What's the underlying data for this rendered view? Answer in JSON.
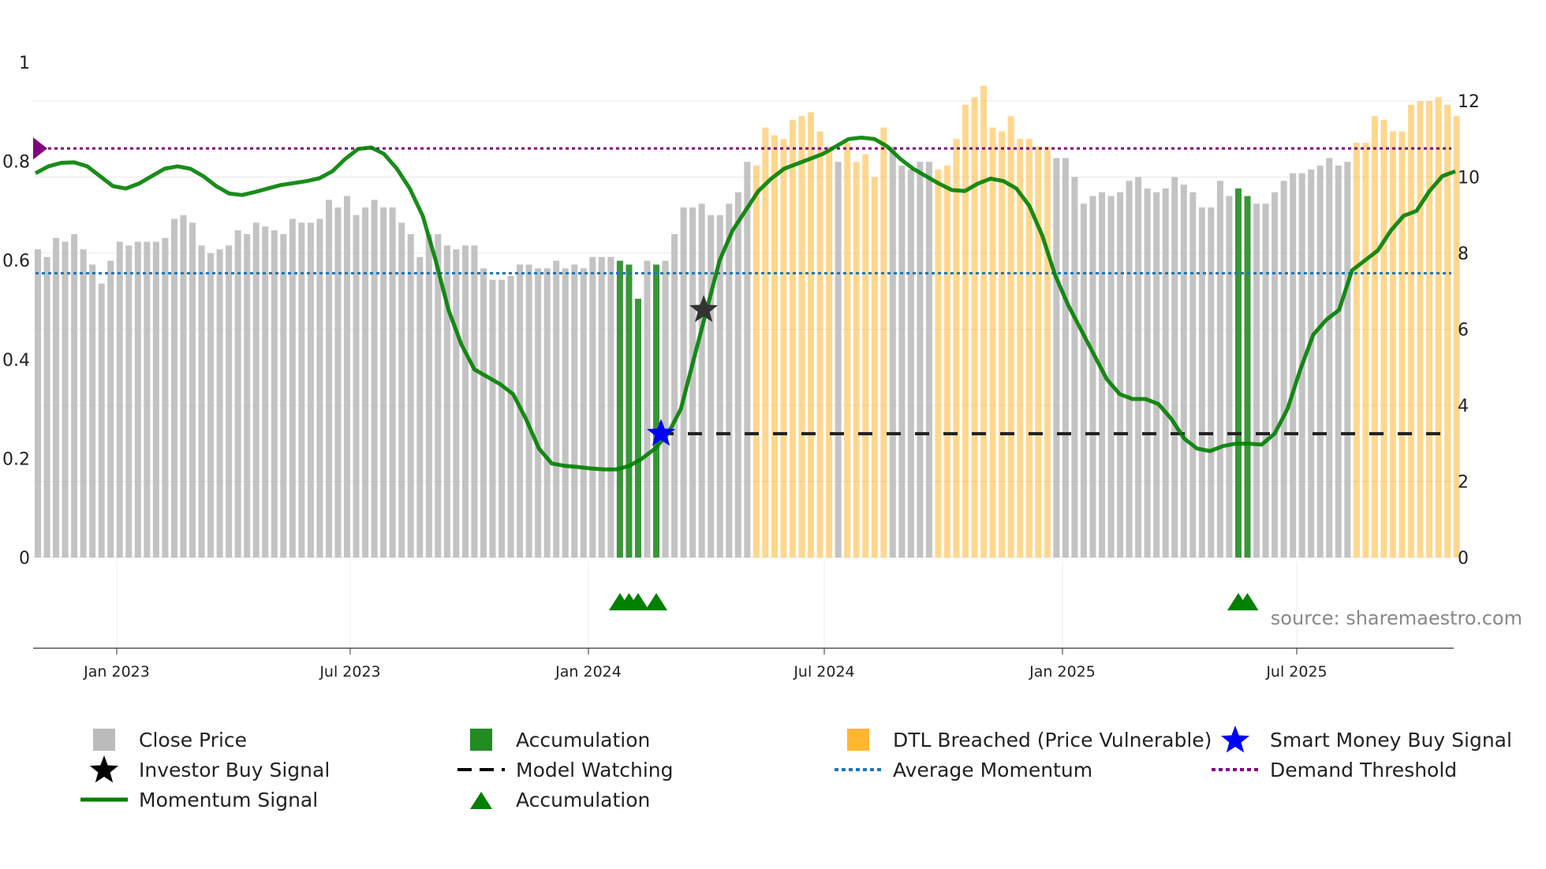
{
  "chart_data": {
    "type": "bar",
    "source": "source: sharemaestro.com",
    "x_ticks": [
      "Jan 2023",
      "Jul 2023",
      "Jan 2024",
      "Jul 2024",
      "Jan 2025",
      "Jul 2025"
    ],
    "y_left": {
      "range": [
        0,
        1
      ],
      "ticks": [
        "0",
        "0.2",
        "0.4",
        "0.6",
        "0.8",
        "1"
      ]
    },
    "y_right": {
      "range": [
        0,
        12
      ],
      "ticks": [
        "0",
        "2",
        "4",
        "6",
        "8",
        "10",
        "12"
      ]
    },
    "close_price": [
      8.1,
      7.9,
      8.4,
      8.3,
      8.5,
      8.1,
      7.7,
      7.2,
      7.8,
      8.3,
      8.2,
      8.3,
      8.3,
      8.3,
      8.4,
      8.9,
      9.0,
      8.8,
      8.2,
      8.0,
      8.1,
      8.2,
      8.6,
      8.5,
      8.8,
      8.7,
      8.6,
      8.5,
      8.9,
      8.8,
      8.8,
      8.9,
      9.4,
      9.2,
      9.5,
      9.0,
      9.2,
      9.4,
      9.2,
      9.2,
      8.8,
      8.5,
      7.9,
      8.5,
      8.5,
      8.2,
      8.1,
      8.2,
      8.2,
      7.6,
      7.3,
      7.3,
      7.4,
      7.7,
      7.7,
      7.6,
      7.6,
      7.8,
      7.6,
      7.7,
      7.6,
      7.9,
      7.9,
      7.9,
      7.8,
      7.7,
      6.8,
      7.8,
      7.7,
      7.8,
      8.5,
      9.2,
      9.2,
      9.3,
      9.0,
      9.0,
      9.3,
      9.6,
      10.4,
      10.3,
      11.3,
      11.1,
      11.0,
      11.5,
      11.6,
      11.7,
      11.2,
      10.8,
      10.4,
      10.9,
      10.4,
      10.6,
      10.0,
      11.3,
      10.8,
      10.3,
      10.2,
      10.4,
      10.4,
      10.2,
      10.3,
      11.0,
      11.9,
      12.1,
      12.4,
      11.3,
      11.2,
      11.6,
      11.0,
      11.0,
      10.8,
      10.8,
      10.5,
      10.5,
      10.0,
      9.3,
      9.5,
      9.6,
      9.5,
      9.6,
      9.9,
      10.0,
      9.7,
      9.6,
      9.7,
      10.0,
      9.8,
      9.6,
      9.2,
      9.2,
      9.9,
      9.5,
      9.7,
      9.5,
      9.3,
      9.3,
      9.6,
      9.9,
      10.1,
      10.1,
      10.2,
      10.3,
      10.5,
      10.3,
      10.4,
      10.9,
      10.9,
      11.6,
      11.5,
      11.2,
      11.2,
      11.9,
      12.0,
      12.0,
      12.1,
      11.9,
      11.6
    ],
    "accumulation_bars": [
      64,
      65,
      66,
      68,
      132,
      133
    ],
    "dtl_breached_bars": [
      79,
      80,
      81,
      82,
      83,
      84,
      85,
      86,
      87,
      89,
      90,
      91,
      92,
      93,
      99,
      100,
      101,
      102,
      103,
      104,
      105,
      106,
      107,
      108,
      109,
      110,
      111,
      145,
      146,
      147,
      148,
      149,
      150,
      151,
      152,
      153,
      154,
      155,
      156
    ],
    "momentum_signal": [
      0.776,
      0.79,
      0.797,
      0.798,
      0.79,
      0.77,
      0.75,
      0.745,
      0.755,
      0.77,
      0.785,
      0.79,
      0.785,
      0.77,
      0.75,
      0.735,
      0.732,
      0.738,
      0.745,
      0.752,
      0.756,
      0.76,
      0.766,
      0.78,
      0.805,
      0.825,
      0.828,
      0.815,
      0.785,
      0.745,
      0.69,
      0.6,
      0.5,
      0.43,
      0.38,
      0.365,
      0.35,
      0.33,
      0.28,
      0.22,
      0.19,
      0.185,
      0.183,
      0.18,
      0.178,
      0.178,
      0.185,
      0.2,
      0.22,
      0.25,
      0.3,
      0.4,
      0.5,
      0.6,
      0.66,
      0.7,
      0.74,
      0.765,
      0.785,
      0.795,
      0.805,
      0.815,
      0.83,
      0.845,
      0.848,
      0.845,
      0.83,
      0.805,
      0.785,
      0.77,
      0.755,
      0.742,
      0.74,
      0.755,
      0.765,
      0.76,
      0.745,
      0.71,
      0.65,
      0.57,
      0.51,
      0.46,
      0.41,
      0.36,
      0.33,
      0.32,
      0.32,
      0.31,
      0.28,
      0.24,
      0.22,
      0.215,
      0.225,
      0.23,
      0.23,
      0.228,
      0.25,
      0.3,
      0.38,
      0.45,
      0.48,
      0.5,
      0.58,
      0.6,
      0.62,
      0.66,
      0.69,
      0.7,
      0.74,
      0.77,
      0.78
    ],
    "average_momentum": 0.574,
    "demand_threshold": 0.826,
    "model_watching_level": 0.25,
    "smart_money_buy_signal": {
      "bar": 68,
      "value": 0.25
    },
    "investor_buy_signal": {
      "bar": 72,
      "value": 0.5
    },
    "accumulation_markers": [
      64,
      65,
      66,
      68,
      132,
      133
    ],
    "legend": [
      {
        "label": "Close Price",
        "symbol": "square",
        "color": "#bbbbbb"
      },
      {
        "label": "Accumulation",
        "symbol": "square",
        "color": "#228b22"
      },
      {
        "label": "DTL Breached (Price Vulnerable)",
        "symbol": "square",
        "color": "#ffb732"
      },
      {
        "label": "Smart Money Buy Signal",
        "symbol": "star",
        "color": "#0000ff"
      },
      {
        "label": "Investor Buy Signal",
        "symbol": "star",
        "color": "#000000"
      },
      {
        "label": "Model Watching",
        "symbol": "dash",
        "color": "#000000"
      },
      {
        "label": "Average Momentum",
        "symbol": "dot",
        "color": "#1f77b4"
      },
      {
        "label": "Demand Threshold",
        "symbol": "dot",
        "color": "#800080"
      },
      {
        "label": "Momentum Signal",
        "symbol": "line",
        "color": "#008000"
      },
      {
        "label": "Accumulation",
        "symbol": "triangle",
        "color": "#008000"
      }
    ]
  }
}
